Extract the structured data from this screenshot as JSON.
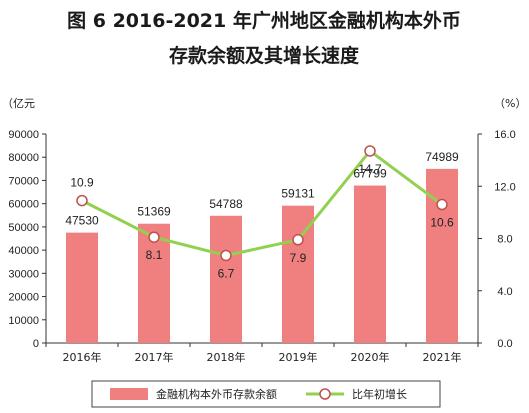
{
  "chart_data": {
    "type": "bar",
    "title_line1": "图 6   2016-2021 年广州地区金融机构本外币",
    "title_line2": "存款余额及其增长速度",
    "left_unit": "（亿元",
    "right_unit": "（%）",
    "categories": [
      "2016年",
      "2017年",
      "2018年",
      "2019年",
      "2020年",
      "2021年"
    ],
    "series": [
      {
        "name": "金融机构本外币存款余额",
        "kind": "bar",
        "axis": "left",
        "color": "#f08080",
        "values": [
          47530,
          51369,
          54788,
          59131,
          67799,
          74989
        ]
      },
      {
        "name": "比年初增长",
        "kind": "line",
        "axis": "right",
        "color": "#92d050",
        "values": [
          10.9,
          8.1,
          6.7,
          7.9,
          14.7,
          10.6
        ]
      }
    ],
    "left_axis": {
      "ylim": [
        0,
        90000
      ],
      "ticks": [
        "0",
        "10000",
        "20000",
        "30000",
        "40000",
        "50000",
        "60000",
        "70000",
        "80000",
        "90000"
      ]
    },
    "right_axis": {
      "ylim": [
        0,
        16
      ],
      "ticks": [
        "0.0",
        "4.0",
        "8.0",
        "12.0",
        "16.0"
      ]
    },
    "grid": false,
    "legend_position": "bottom"
  }
}
